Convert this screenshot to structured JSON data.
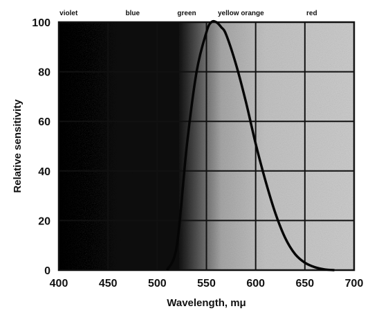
{
  "chart_data": {
    "type": "line",
    "title": "",
    "xlabel": "Wavelength, mμ",
    "ylabel": "Relative sensitivity",
    "xlim": [
      400,
      700
    ],
    "ylim": [
      0,
      100
    ],
    "x_ticks": [
      "400",
      "450",
      "500",
      "550",
      "600",
      "650",
      "700"
    ],
    "y_ticks": [
      "0",
      "20",
      "40",
      "60",
      "80",
      "100"
    ],
    "grid": true,
    "color_bands": [
      {
        "label": "violet",
        "x": 410
      },
      {
        "label": "blue",
        "x": 475
      },
      {
        "label": "green",
        "x": 530
      },
      {
        "label": "yellow orange",
        "x": 585
      },
      {
        "label": "red",
        "x": 657
      }
    ],
    "series": [
      {
        "x": [
          510,
          520,
          530,
          540,
          550,
          555,
          560,
          565,
          570,
          580,
          590,
          600,
          610,
          620,
          630,
          640,
          650,
          660,
          670,
          680
        ],
        "y": [
          0,
          10,
          50,
          80,
          96,
          100,
          100,
          98,
          95,
          83,
          68,
          51,
          36,
          23,
          13,
          6.5,
          3,
          1.2,
          0.3,
          0
        ]
      }
    ],
    "colors": {
      "background": "#ffffff",
      "plot_fill": "#bdbdbd",
      "dark_region": "#080808",
      "grid": "#111111",
      "curve": "#050505"
    }
  }
}
